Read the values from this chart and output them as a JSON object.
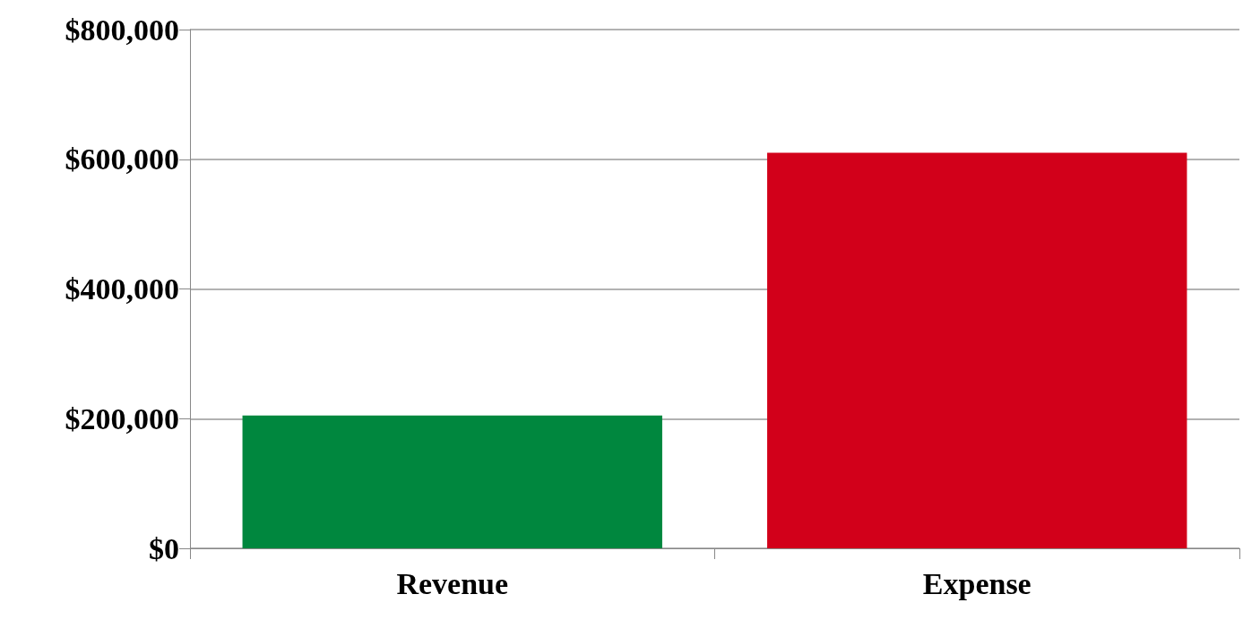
{
  "chart_data": {
    "type": "bar",
    "categories": [
      "Revenue",
      "Expense"
    ],
    "values": [
      205000,
      610000
    ],
    "colors": [
      "#00873e",
      "#d2001a"
    ],
    "ylim": [
      0,
      800000
    ],
    "yticks": [
      {
        "value": 0,
        "label": "$0"
      },
      {
        "value": 200000,
        "label": "$200,000"
      },
      {
        "value": 400000,
        "label": "$400,000"
      },
      {
        "value": 600000,
        "label": "$600,000"
      },
      {
        "value": 800000,
        "label": "$800,000"
      }
    ],
    "grid": "y"
  }
}
